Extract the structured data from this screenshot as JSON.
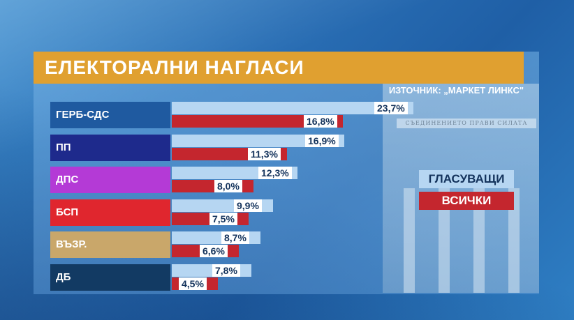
{
  "header": {
    "title": "ЕЛЕКТОРАЛНИ НАГЛАСИ",
    "source": "ИЗТОЧНИК: „МАРКЕТ ЛИНКС\""
  },
  "background": {
    "frieze_text": "СЪЕДИНЕНИЕТО ПРАВИ СИЛАТА"
  },
  "chart_data": {
    "type": "bar",
    "orientation": "horizontal",
    "categories": [
      "ГЕРБ-СДС",
      "ПП",
      "ДПС",
      "БСП",
      "ВЪЗР.",
      "ДБ"
    ],
    "category_colors": [
      "#1f5aa0",
      "#1e2a8c",
      "#b43ad6",
      "#e0262e",
      "#c9a76a",
      "#123a63"
    ],
    "series": [
      {
        "name": "ГЛАСУВАЩИ",
        "color": "#b6d6f2",
        "values": [
          23.7,
          16.9,
          12.3,
          9.9,
          8.7,
          7.8
        ]
      },
      {
        "name": "ВСИЧКИ",
        "color": "#c4262e",
        "values": [
          16.8,
          11.3,
          8.0,
          7.5,
          6.6,
          4.5
        ]
      }
    ],
    "value_labels": [
      [
        "23,7%",
        "16,9%",
        "12,3%",
        "9,9%",
        "8,7%",
        "7,8%"
      ],
      [
        "16,8%",
        "11,3%",
        "8,0%",
        "7,5%",
        "6,6%",
        "4,5%"
      ]
    ],
    "legend": "right",
    "title": "ЕЛЕКТОРАЛНИ НАГЛАСИ",
    "xlabel": "",
    "ylabel": ""
  }
}
